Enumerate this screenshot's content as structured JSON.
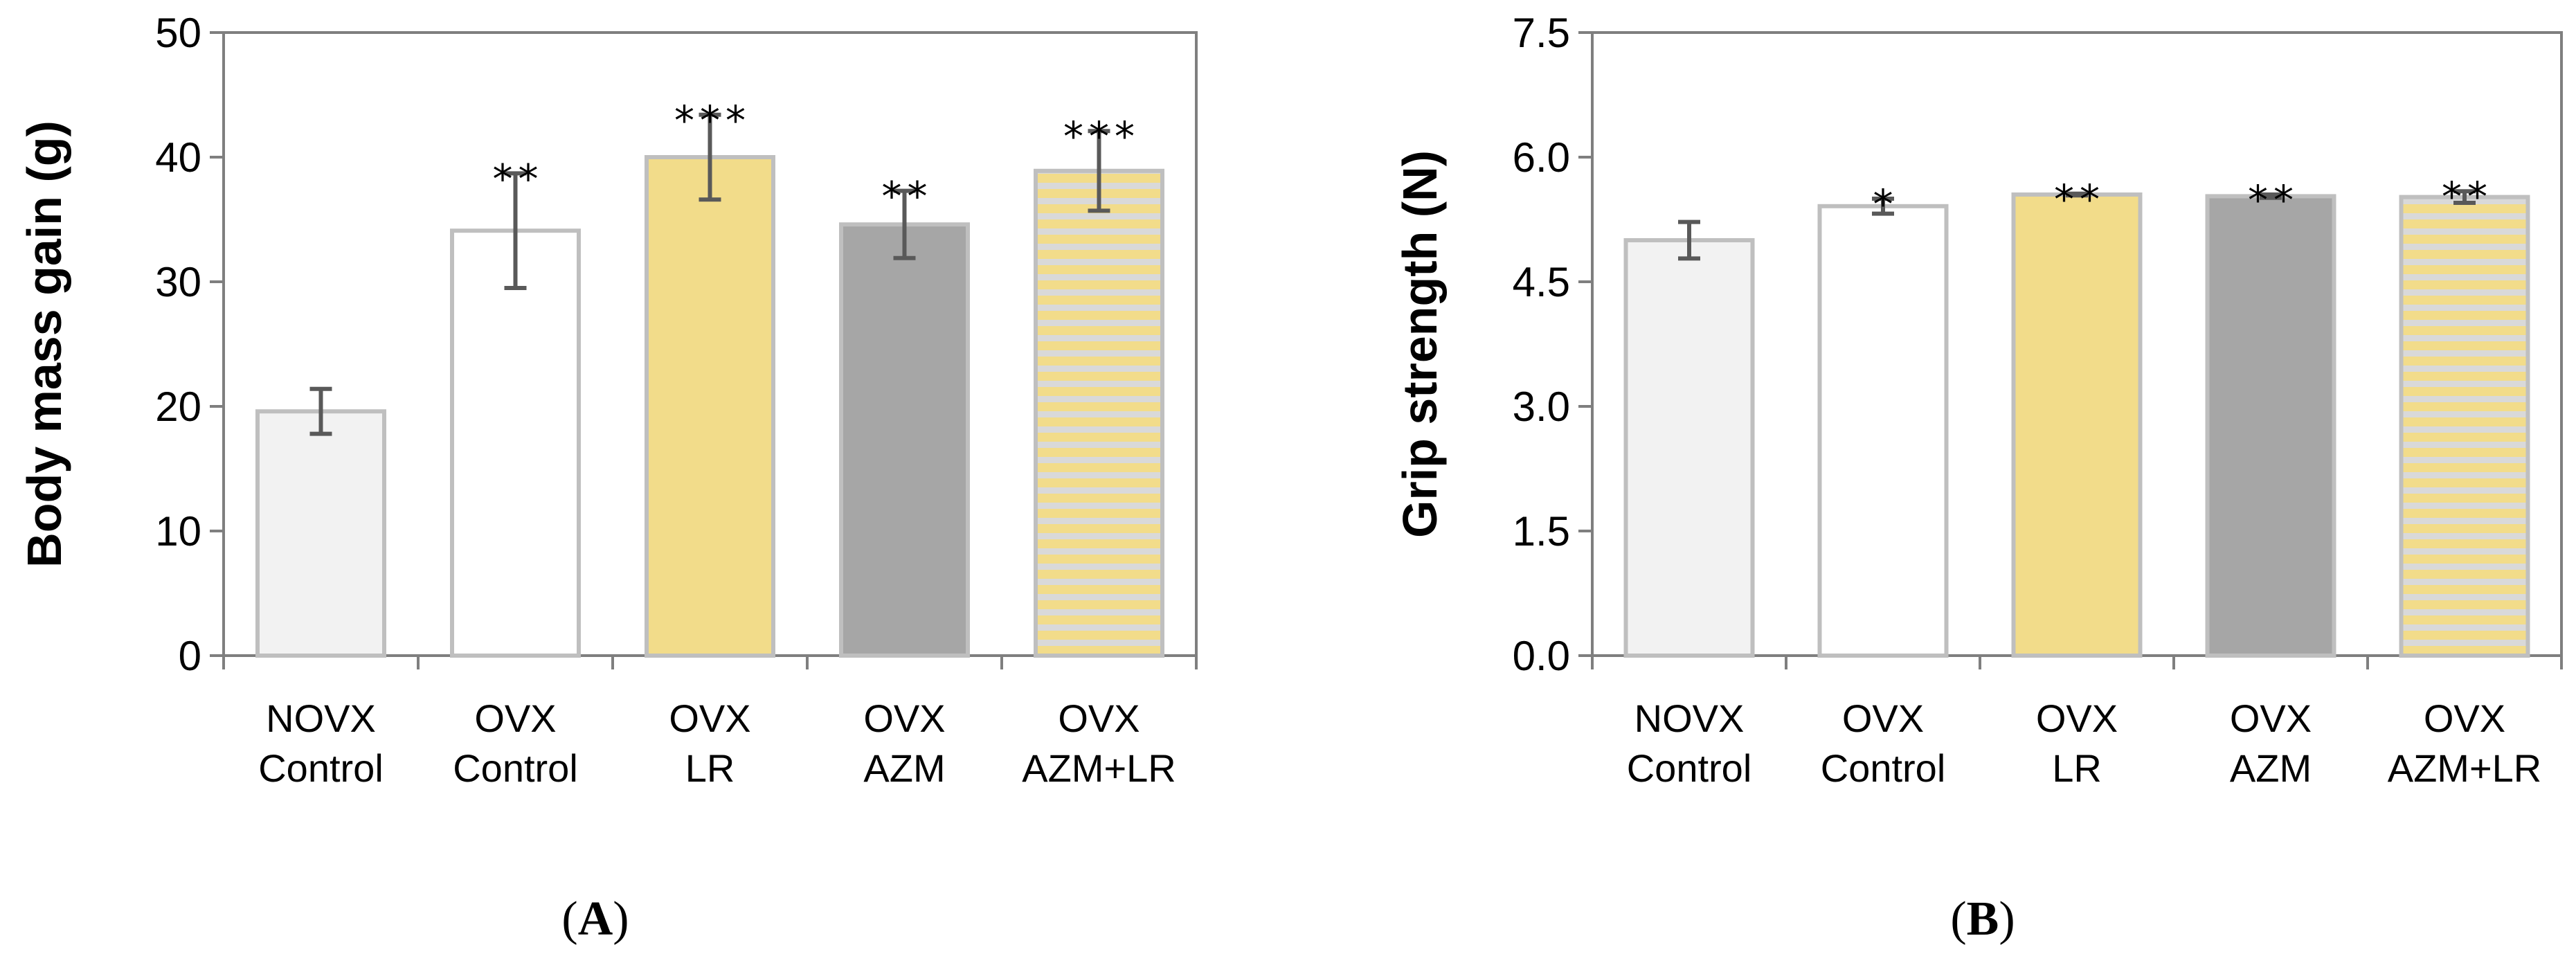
{
  "chart_data": [
    {
      "type": "bar",
      "panel": "A",
      "ylabel": "Body mass gain (g)",
      "ylim": [
        0,
        50
      ],
      "yticks": [
        "0",
        "10",
        "20",
        "30",
        "40",
        "50"
      ],
      "categories": [
        {
          "line1": "NOVX",
          "line2": "Control"
        },
        {
          "line1": "OVX",
          "line2": "Control"
        },
        {
          "line1": "OVX",
          "line2": "LR"
        },
        {
          "line1": "OVX",
          "line2": "AZM"
        },
        {
          "line1": "OVX",
          "line2": "AZM+LR"
        }
      ],
      "values": [
        19.6,
        34.1,
        40.0,
        34.6,
        38.9
      ],
      "errors": [
        1.8,
        4.6,
        3.4,
        2.7,
        3.2
      ],
      "significance": [
        "",
        "**",
        "***",
        "**",
        "***"
      ],
      "bar_styles": [
        {
          "fill": "#f2f2f2",
          "stroke": "#bfbfbf",
          "pattern": "none"
        },
        {
          "fill": "#ffffff",
          "stroke": "#bfbfbf",
          "pattern": "none"
        },
        {
          "fill": "#f2dc8a",
          "stroke": "#bfbfbf",
          "pattern": "none"
        },
        {
          "fill": "#a6a6a6",
          "stroke": "#bfbfbf",
          "pattern": "none"
        },
        {
          "fill": "#f2dc8a",
          "stroke": "#bfbfbf",
          "pattern": "stripes",
          "stripe_color": "#d9d9d9"
        }
      ]
    },
    {
      "type": "bar",
      "panel": "B",
      "ylabel": "Grip strength (N)",
      "ylim": [
        0,
        7.5
      ],
      "yticks": [
        "0.0",
        "1.5",
        "3.0",
        "4.5",
        "6.0",
        "7.5"
      ],
      "categories": [
        {
          "line1": "NOVX",
          "line2": "Control"
        },
        {
          "line1": "OVX",
          "line2": "Control"
        },
        {
          "line1": "OVX",
          "line2": "LR"
        },
        {
          "line1": "OVX",
          "line2": "AZM"
        },
        {
          "line1": "OVX",
          "line2": "AZM+LR"
        }
      ],
      "values": [
        5.0,
        5.41,
        5.55,
        5.53,
        5.52
      ],
      "errors": [
        0.22,
        0.09,
        0.01,
        0.02,
        0.07
      ],
      "significance": [
        "",
        "*",
        "**",
        "**",
        "**"
      ],
      "bar_styles": [
        {
          "fill": "#f2f2f2",
          "stroke": "#bfbfbf",
          "pattern": "none"
        },
        {
          "fill": "#ffffff",
          "stroke": "#bfbfbf",
          "pattern": "none"
        },
        {
          "fill": "#f2dc8a",
          "stroke": "#bfbfbf",
          "pattern": "none"
        },
        {
          "fill": "#a6a6a6",
          "stroke": "#bfbfbf",
          "pattern": "none"
        },
        {
          "fill": "#f2dc8a",
          "stroke": "#bfbfbf",
          "pattern": "stripes",
          "stripe_color": "#d9d9d9"
        }
      ]
    }
  ],
  "panel_labels": {
    "a": {
      "open": "(",
      "letter": "A",
      "close": ")"
    },
    "b": {
      "open": "(",
      "letter": "B",
      "close": ")"
    }
  },
  "colors": {
    "axis": "#7f7f7f",
    "error_bar": "#595959"
  }
}
